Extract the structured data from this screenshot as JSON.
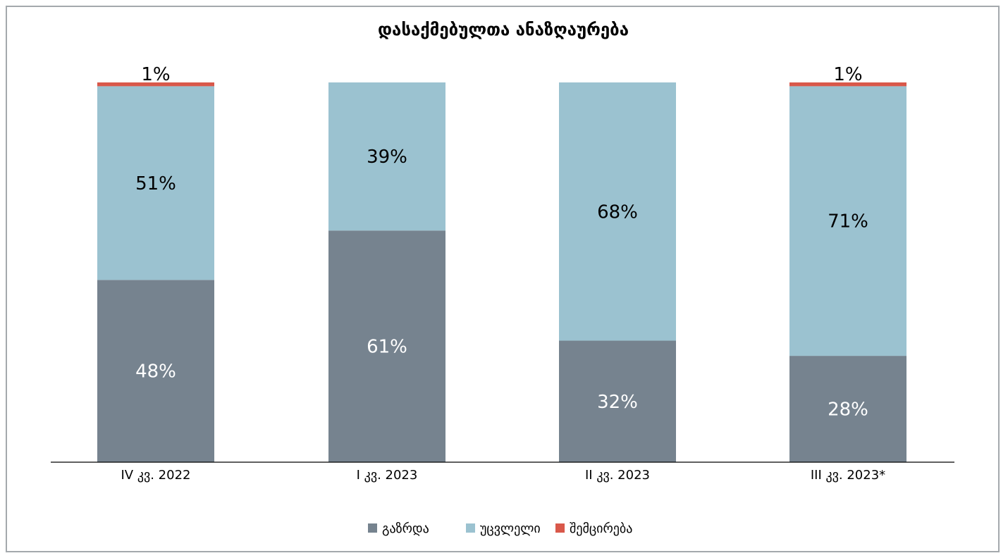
{
  "chart_data": {
    "type": "bar",
    "stacked": true,
    "title": "დასაქმებულთა ანაზღაურება",
    "categories": [
      "IV კვ. 2022",
      "I კვ. 2023",
      "II კვ. 2023",
      "III კვ. 2023*"
    ],
    "series": [
      {
        "name": "გაზრდა",
        "color": "#76838f",
        "label_color": "#ffffff",
        "values": [
          48,
          61,
          32,
          28
        ],
        "labels": [
          "48%",
          "61%",
          "32%",
          "28%"
        ]
      },
      {
        "name": "უცვლელი",
        "color": "#9bc2d0",
        "label_color": "#000000",
        "values": [
          51,
          39,
          68,
          71
        ],
        "labels": [
          "51%",
          "39%",
          "68%",
          "71%"
        ]
      },
      {
        "name": "შემცირება",
        "color": "#d9584a",
        "label_color": "#000000",
        "values": [
          1,
          0,
          0,
          1
        ],
        "labels": [
          "1%",
          "",
          "",
          "1%"
        ]
      }
    ],
    "ylim": [
      0,
      100
    ],
    "grid": false,
    "legend_position": "bottom"
  }
}
